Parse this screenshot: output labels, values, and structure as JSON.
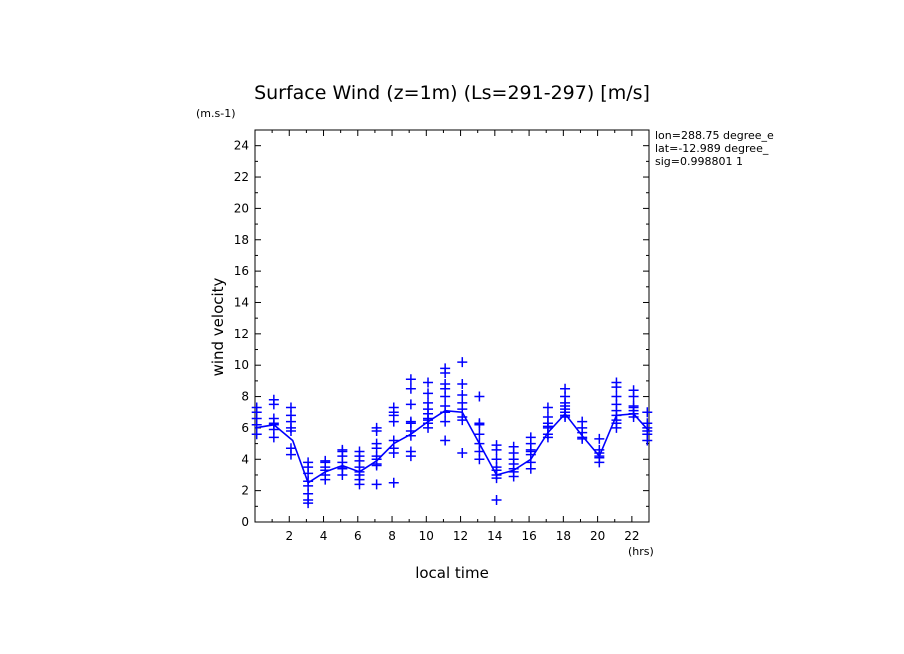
{
  "chart_data": {
    "type": "scatter",
    "title": "Surface Wind (z=1m) (Ls=291-297) [m/s]",
    "xlabel": "local time",
    "ylabel": "wind velocity",
    "x_unit": "(hrs)",
    "y_unit": "(m.s-1)",
    "xlim": [
      0,
      23
    ],
    "ylim": [
      0,
      25
    ],
    "xticks": [
      2,
      4,
      6,
      8,
      10,
      12,
      14,
      16,
      18,
      20,
      22
    ],
    "yticks": [
      0,
      2,
      4,
      6,
      8,
      10,
      12,
      14,
      16,
      18,
      20,
      22,
      24
    ],
    "info_lines": [
      "lon=288.75 degree_e",
      "lat=-12.989 degree_",
      "sig=0.998801 1"
    ],
    "color": "#0000ff",
    "mean_line": {
      "x": [
        0,
        1.1,
        2.2,
        3.1,
        4.1,
        5.1,
        6.1,
        7.1,
        8.1,
        9.1,
        10.1,
        11.1,
        12.1,
        13.1,
        14.1,
        15.1,
        16.1,
        17.1,
        18.1,
        19.1,
        20.1,
        21.1,
        22.1,
        23
      ],
      "y": [
        6.0,
        6.2,
        5.2,
        2.5,
        3.2,
        3.6,
        3.2,
        3.9,
        5.0,
        5.6,
        6.4,
        7.1,
        7.0,
        5.0,
        3.0,
        3.3,
        4.0,
        5.7,
        6.9,
        5.5,
        4.2,
        6.8,
        6.9,
        5.8
      ]
    },
    "points": [
      {
        "x": 0.1,
        "y": [
          7.3,
          7.0,
          6.6,
          6.2,
          5.6
        ]
      },
      {
        "x": 1.1,
        "y": [
          7.8,
          7.5,
          6.6,
          6.3,
          6.2,
          5.9,
          5.4
        ]
      },
      {
        "x": 2.1,
        "y": [
          7.3,
          6.8,
          6.4,
          6.0,
          5.8,
          4.7,
          4.3
        ]
      },
      {
        "x": 3.1,
        "y": [
          3.8,
          3.5,
          3.1,
          2.6,
          2.3,
          1.8,
          1.4,
          1.2
        ]
      },
      {
        "x": 4.1,
        "y": [
          3.9,
          3.8,
          3.5,
          3.3,
          3.0,
          2.7
        ]
      },
      {
        "x": 5.1,
        "y": [
          4.6,
          4.5,
          4.2,
          3.8,
          3.5,
          3.4,
          3.0
        ]
      },
      {
        "x": 6.1,
        "y": [
          4.5,
          4.2,
          3.9,
          3.5,
          3.2,
          3.0,
          2.7,
          2.4
        ]
      },
      {
        "x": 7.1,
        "y": [
          6.0,
          5.8,
          5.0,
          4.7,
          4.2,
          4.0,
          3.7,
          3.6,
          2.4
        ]
      },
      {
        "x": 8.1,
        "y": [
          7.3,
          7.0,
          6.8,
          6.4,
          5.2,
          4.7,
          4.4,
          2.5
        ]
      },
      {
        "x": 9.1,
        "y": [
          9.1,
          8.5,
          7.5,
          6.4,
          6.3,
          5.8,
          5.5,
          4.5,
          4.2
        ]
      },
      {
        "x": 10.1,
        "y": [
          8.9,
          8.2,
          7.6,
          7.2,
          6.9,
          6.6,
          6.5,
          6.3,
          6.0
        ]
      },
      {
        "x": 11.1,
        "y": [
          9.8,
          9.5,
          8.8,
          8.5,
          8.0,
          7.4,
          7.0,
          6.4,
          5.2
        ]
      },
      {
        "x": 12.1,
        "y": [
          10.2,
          8.8,
          8.1,
          7.6,
          7.2,
          6.7,
          6.5,
          4.4
        ]
      },
      {
        "x": 13.1,
        "y": [
          8.0,
          6.3,
          6.2,
          5.6,
          5.0,
          4.5,
          4.0
        ]
      },
      {
        "x": 14.1,
        "y": [
          4.9,
          4.6,
          4.0,
          3.5,
          3.3,
          3.0,
          2.8,
          1.4
        ]
      },
      {
        "x": 15.1,
        "y": [
          4.8,
          4.4,
          4.0,
          3.7,
          3.4,
          3.2,
          2.9
        ]
      },
      {
        "x": 16.1,
        "y": [
          5.4,
          5.0,
          4.6,
          4.5,
          4.3,
          3.8,
          3.4
        ]
      },
      {
        "x": 17.1,
        "y": [
          7.3,
          6.7,
          6.3,
          6.1,
          6.0,
          5.6,
          5.4
        ]
      },
      {
        "x": 18.1,
        "y": [
          8.5,
          8.0,
          7.6,
          7.4,
          7.2,
          7.0,
          6.8,
          6.7
        ]
      },
      {
        "x": 19.1,
        "y": [
          6.4,
          6.0,
          5.7,
          5.4,
          5.3
        ]
      },
      {
        "x": 20.1,
        "y": [
          5.3,
          4.6,
          4.4,
          4.2,
          4.1,
          3.8
        ]
      },
      {
        "x": 21.1,
        "y": [
          8.9,
          8.6,
          8.0,
          7.5,
          7.1,
          6.8,
          6.5,
          6.3,
          6.0
        ]
      },
      {
        "x": 22.1,
        "y": [
          8.4,
          8.0,
          7.4,
          7.3,
          7.1,
          6.9,
          6.7
        ]
      },
      {
        "x": 22.9,
        "y": [
          7.0,
          6.3,
          6.0,
          5.8,
          5.6,
          5.2
        ]
      }
    ]
  }
}
